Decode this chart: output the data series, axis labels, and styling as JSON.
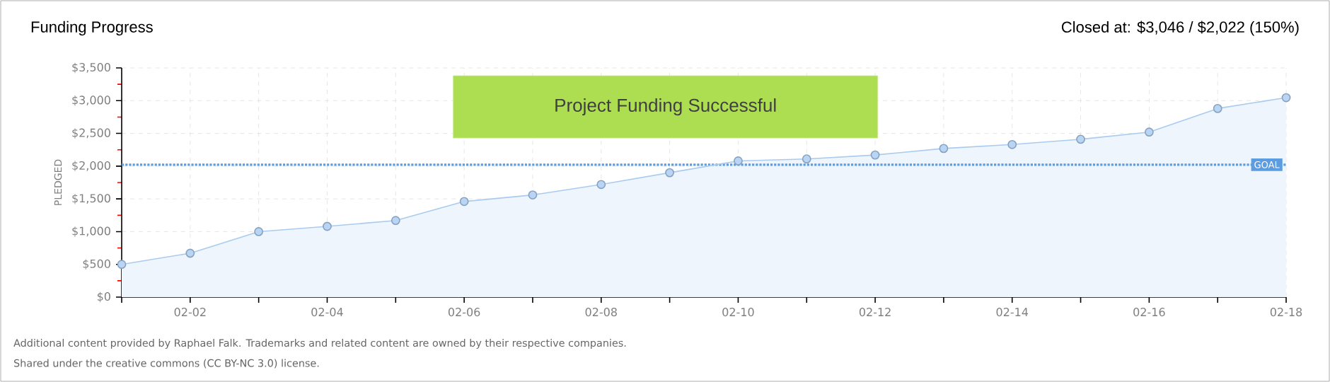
{
  "chart_data": {
    "type": "area",
    "title": "Funding Progress",
    "ylabel": "PLEDGED",
    "annotations": [
      "Closed at: $3,046 / $2,022 (150%)",
      "Project Funding Successful",
      "Additional content provided by Raphael Falk. Trademarks and related content are owned by their respective companies.",
      "Shared under the creative commons (CC BY-NC 3.0) license."
    ],
    "categories": [
      null,
      "02-02",
      null,
      "02-04",
      null,
      "02-06",
      null,
      "02-08",
      null,
      "02-10",
      null,
      "02-12",
      null,
      "02-14",
      null,
      "02-16",
      null,
      "02-18"
    ],
    "series": [
      {
        "color": "#a9cbf0",
        "values": [
          500,
          670,
          1000,
          1080,
          1170,
          1460,
          1560,
          1720,
          1900,
          2080,
          2110,
          2170,
          2270,
          2330,
          2410,
          2520,
          2880,
          3046
        ]
      }
    ],
    "ylim": [
      0,
      3500
    ],
    "yticks": [
      {
        "value": 0,
        "label": "$0"
      },
      {
        "value": 500,
        "label": "$500"
      },
      {
        "value": 1000,
        "label": "$1,000"
      },
      {
        "value": 1500,
        "label": "$1,500"
      },
      {
        "value": 2000,
        "label": "$2,000"
      },
      {
        "value": 2500,
        "label": "$2,500"
      },
      {
        "value": 3000,
        "label": "$3,000"
      },
      {
        "value": 3500,
        "label": "$3,500"
      }
    ],
    "ref_lines": [
      {
        "axis": "y",
        "value": 2022,
        "label": "GOAL",
        "color": "#5b9de0",
        "line_style": "dotted"
      }
    ],
    "grid": true,
    "marker": "circle"
  }
}
